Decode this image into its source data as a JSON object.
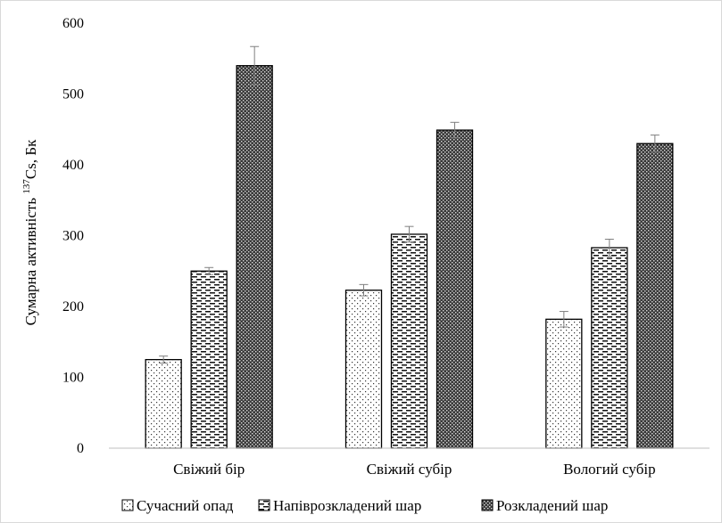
{
  "chart_data": {
    "type": "bar",
    "title": "",
    "xlabel": "",
    "ylabel_prefix": "Сумарна активність ",
    "ylabel_sup": "137",
    "ylabel_suffix": "Cs, Бк",
    "categories": [
      "Свіжий бір",
      "Свіжий субір",
      "Вологий субір"
    ],
    "ylim": [
      0,
      600
    ],
    "yticks": [
      0,
      100,
      200,
      300,
      400,
      500,
      600
    ],
    "grid": false,
    "legend_position": "bottom",
    "series": [
      {
        "name": "Сучасний опад",
        "values": [
          125,
          223,
          182
        ],
        "errors": [
          5,
          8,
          11
        ],
        "pattern": "dots"
      },
      {
        "name": "Напіврозкладений шар",
        "values": [
          250,
          302,
          283
        ],
        "errors": [
          5,
          11,
          12
        ],
        "pattern": "dashes"
      },
      {
        "name": "Розкладений шар",
        "values": [
          540,
          449,
          430
        ],
        "errors": [
          27,
          11,
          12
        ],
        "pattern": "dense"
      }
    ]
  }
}
